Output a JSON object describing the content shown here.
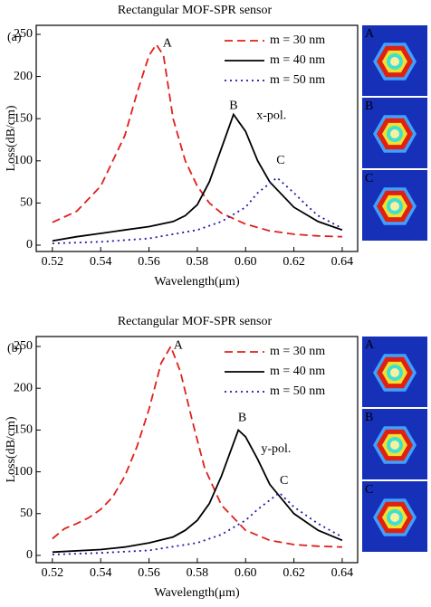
{
  "chart_data": [
    {
      "type": "line",
      "title": "Rectangular MOF-SPR sensor",
      "panel_label": "(a)",
      "x_label": "Wavelength(μm)",
      "y_label": "Loss(dB/cm)",
      "xlim": [
        0.5133,
        0.6464
      ],
      "ylim": [
        -7.5,
        260.7
      ],
      "xticks": [
        0.52,
        0.54,
        0.56,
        0.58,
        {
          "value": 0.6,
          "label": "0.60"
        },
        0.62,
        0.64
      ],
      "yticks": [
        0,
        50,
        100,
        150,
        200,
        250
      ],
      "series": [
        {
          "name": "m = 30 nm",
          "color": "#e0201b",
          "style": "dashed",
          "x": [
            0.52,
            0.53,
            0.54,
            0.55,
            0.555,
            0.56,
            0.563,
            0.566,
            0.57,
            0.575,
            0.58,
            0.585,
            0.59,
            0.6,
            0.61,
            0.62,
            0.63,
            0.64
          ],
          "values": [
            27,
            40,
            70,
            130,
            180,
            225,
            238,
            225,
            150,
            100,
            70,
            50,
            38,
            25,
            17,
            13,
            11,
            10
          ]
        },
        {
          "name": "m = 40 nm",
          "color": "#000000",
          "style": "solid",
          "x": [
            0.52,
            0.53,
            0.54,
            0.55,
            0.56,
            0.57,
            0.575,
            0.58,
            0.585,
            0.59,
            0.595,
            0.6,
            0.605,
            0.61,
            0.62,
            0.63,
            0.64
          ],
          "values": [
            5,
            10,
            14,
            18,
            22,
            28,
            35,
            48,
            75,
            115,
            155,
            135,
            100,
            75,
            45,
            28,
            18
          ]
        },
        {
          "name": "m = 50 nm",
          "color": "#1a1aa8",
          "style": "dotted",
          "x": [
            0.52,
            0.54,
            0.56,
            0.58,
            0.59,
            0.6,
            0.605,
            0.613,
            0.62,
            0.625,
            0.63,
            0.64
          ],
          "values": [
            2,
            4,
            8,
            18,
            28,
            45,
            62,
            80,
            62,
            48,
            35,
            20
          ]
        }
      ],
      "annotations": [
        {
          "text": "A",
          "x": 0.5676,
          "y": 239
        },
        {
          "text": "B",
          "x": 0.595,
          "y": 165
        },
        {
          "text": "C",
          "x": 0.6145,
          "y": 100
        },
        {
          "text": "x-pol.",
          "x": 0.6107,
          "y": 153
        }
      ],
      "inset_labels": [
        "A",
        "B",
        "C"
      ]
    },
    {
      "type": "line",
      "title": "Rectangular MOF-SPR sensor",
      "panel_label": "(b)",
      "x_label": "Wavelength(μm)",
      "y_label": "Loss(dB/cm)",
      "xlim": [
        0.5133,
        0.6464
      ],
      "ylim": [
        -8.7,
        261.9
      ],
      "xticks": [
        0.52,
        0.54,
        0.56,
        0.58,
        {
          "value": 0.6,
          "label": "0.60"
        },
        0.62,
        0.64
      ],
      "yticks": [
        0,
        50,
        100,
        150,
        200,
        250
      ],
      "series": [
        {
          "name": "m = 30 nm",
          "color": "#e0201b",
          "style": "dashed",
          "x": [
            0.52,
            0.525,
            0.53,
            0.535,
            0.54,
            0.545,
            0.55,
            0.555,
            0.56,
            0.565,
            0.569,
            0.573,
            0.578,
            0.583,
            0.59,
            0.6,
            0.61,
            0.62,
            0.63,
            0.64
          ],
          "values": [
            20,
            32,
            38,
            45,
            55,
            70,
            95,
            130,
            175,
            230,
            250,
            220,
            160,
            105,
            60,
            30,
            18,
            13,
            11,
            10
          ]
        },
        {
          "name": "m = 40 nm",
          "color": "#000000",
          "style": "solid",
          "x": [
            0.52,
            0.54,
            0.55,
            0.56,
            0.57,
            0.575,
            0.58,
            0.585,
            0.59,
            0.597,
            0.6,
            0.605,
            0.61,
            0.62,
            0.63,
            0.64
          ],
          "values": [
            4,
            7,
            10,
            15,
            22,
            30,
            42,
            62,
            95,
            150,
            142,
            115,
            85,
            50,
            30,
            18
          ]
        },
        {
          "name": "m = 50 nm",
          "color": "#1a1aa8",
          "style": "dotted",
          "x": [
            0.52,
            0.54,
            0.56,
            0.58,
            0.59,
            0.6,
            0.605,
            0.614,
            0.62,
            0.63,
            0.64
          ],
          "values": [
            1,
            3,
            6,
            15,
            25,
            42,
            55,
            75,
            58,
            38,
            22
          ]
        }
      ],
      "annotations": [
        {
          "text": "A",
          "x": 0.5721,
          "y": 251
        },
        {
          "text": "B",
          "x": 0.5986,
          "y": 164
        },
        {
          "text": "C",
          "x": 0.6159,
          "y": 89
        },
        {
          "text": "y-pol.",
          "x": 0.6126,
          "y": 127
        }
      ],
      "inset_labels": [
        "A",
        "B",
        "C"
      ]
    }
  ]
}
